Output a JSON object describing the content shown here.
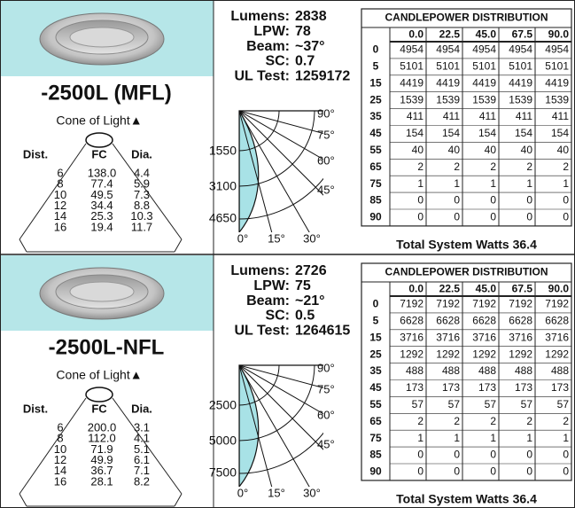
{
  "panels": [
    {
      "model": "-2500L (MFL)",
      "cone": {
        "title": "Cone of Light▲",
        "headers": [
          "Dist.",
          "FC",
          "Dia."
        ],
        "rows": [
          [
            "6",
            "138.0",
            "4.4"
          ],
          [
            "8",
            "77.4",
            "5.9"
          ],
          [
            "10",
            "49.5",
            "7.3"
          ],
          [
            "12",
            "34.4",
            "8.8"
          ],
          [
            "14",
            "25.3",
            "10.3"
          ],
          [
            "16",
            "19.4",
            "11.7"
          ]
        ]
      },
      "stats": [
        {
          "label": "Lumens:",
          "value": "2838"
        },
        {
          "label": "LPW:",
          "value": "78"
        },
        {
          "label": "Beam:",
          "value": "~37°"
        },
        {
          "label": "SC:",
          "value": "0.7"
        },
        {
          "label": "UL Test:",
          "value": "1259172"
        }
      ],
      "polar": {
        "side_angles": [
          "90°",
          "75°",
          "60°",
          "45°"
        ],
        "intensity": [
          "1550",
          "3100",
          "4650"
        ],
        "bottom_angles": [
          "0°",
          "15°",
          "30°"
        ]
      },
      "candlepower": {
        "title": "CANDLEPOWER DISTRIBUTION",
        "angles": [
          "0.0",
          "22.5",
          "45.0",
          "67.5",
          "90.0"
        ],
        "rows": [
          {
            "angle": "0",
            "values": [
              "4954",
              "4954",
              "4954",
              "4954",
              "4954"
            ]
          },
          {
            "angle": "5",
            "values": [
              "5101",
              "5101",
              "5101",
              "5101",
              "5101"
            ]
          },
          {
            "angle": "15",
            "values": [
              "4419",
              "4419",
              "4419",
              "4419",
              "4419"
            ]
          },
          {
            "angle": "25",
            "values": [
              "1539",
              "1539",
              "1539",
              "1539",
              "1539"
            ]
          },
          {
            "angle": "35",
            "values": [
              "411",
              "411",
              "411",
              "411",
              "411"
            ]
          },
          {
            "angle": "45",
            "values": [
              "154",
              "154",
              "154",
              "154",
              "154"
            ]
          },
          {
            "angle": "55",
            "values": [
              "40",
              "40",
              "40",
              "40",
              "40"
            ]
          },
          {
            "angle": "65",
            "values": [
              "2",
              "2",
              "2",
              "2",
              "2"
            ]
          },
          {
            "angle": "75",
            "values": [
              "1",
              "1",
              "1",
              "1",
              "1"
            ]
          },
          {
            "angle": "85",
            "values": [
              "0",
              "0",
              "0",
              "0",
              "0"
            ]
          },
          {
            "angle": "90",
            "values": [
              "0",
              "0",
              "0",
              "0",
              "0"
            ]
          }
        ]
      },
      "total": "Total System Watts 36.4"
    },
    {
      "model": "-2500L-NFL",
      "cone": {
        "title": "Cone of Light▲",
        "headers": [
          "Dist.",
          "FC",
          "Dia."
        ],
        "rows": [
          [
            "6",
            "200.0",
            "3.1"
          ],
          [
            "8",
            "112.0",
            "4.1"
          ],
          [
            "10",
            "71.9",
            "5.1"
          ],
          [
            "12",
            "49.9",
            "6.1"
          ],
          [
            "14",
            "36.7",
            "7.1"
          ],
          [
            "16",
            "28.1",
            "8.2"
          ]
        ]
      },
      "stats": [
        {
          "label": "Lumens:",
          "value": "2726"
        },
        {
          "label": "LPW:",
          "value": "75"
        },
        {
          "label": "Beam:",
          "value": "~21°"
        },
        {
          "label": "SC:",
          "value": "0.5"
        },
        {
          "label": "UL Test:",
          "value": "1264615"
        }
      ],
      "polar": {
        "side_angles": [
          "90°",
          "75°",
          "60°",
          "45°"
        ],
        "intensity": [
          "2500",
          "5000",
          "7500"
        ],
        "bottom_angles": [
          "0°",
          "15°",
          "30°"
        ]
      },
      "candlepower": {
        "title": "CANDLEPOWER DISTRIBUTION",
        "angles": [
          "0.0",
          "22.5",
          "45.0",
          "67.5",
          "90.0"
        ],
        "rows": [
          {
            "angle": "0",
            "values": [
              "7192",
              "7192",
              "7192",
              "7192",
              "7192"
            ]
          },
          {
            "angle": "5",
            "values": [
              "6628",
              "6628",
              "6628",
              "6628",
              "6628"
            ]
          },
          {
            "angle": "15",
            "values": [
              "3716",
              "3716",
              "3716",
              "3716",
              "3716"
            ]
          },
          {
            "angle": "25",
            "values": [
              "1292",
              "1292",
              "1292",
              "1292",
              "1292"
            ]
          },
          {
            "angle": "35",
            "values": [
              "488",
              "488",
              "488",
              "488",
              "488"
            ]
          },
          {
            "angle": "45",
            "values": [
              "173",
              "173",
              "173",
              "173",
              "173"
            ]
          },
          {
            "angle": "55",
            "values": [
              "57",
              "57",
              "57",
              "57",
              "57"
            ]
          },
          {
            "angle": "65",
            "values": [
              "2",
              "2",
              "2",
              "2",
              "2"
            ]
          },
          {
            "angle": "75",
            "values": [
              "1",
              "1",
              "1",
              "1",
              "1"
            ]
          },
          {
            "angle": "85",
            "values": [
              "0",
              "0",
              "0",
              "0",
              "0"
            ]
          },
          {
            "angle": "90",
            "values": [
              "0",
              "0",
              "0",
              "0",
              "0"
            ]
          }
        ]
      },
      "total": "Total System Watts 36.4"
    }
  ]
}
